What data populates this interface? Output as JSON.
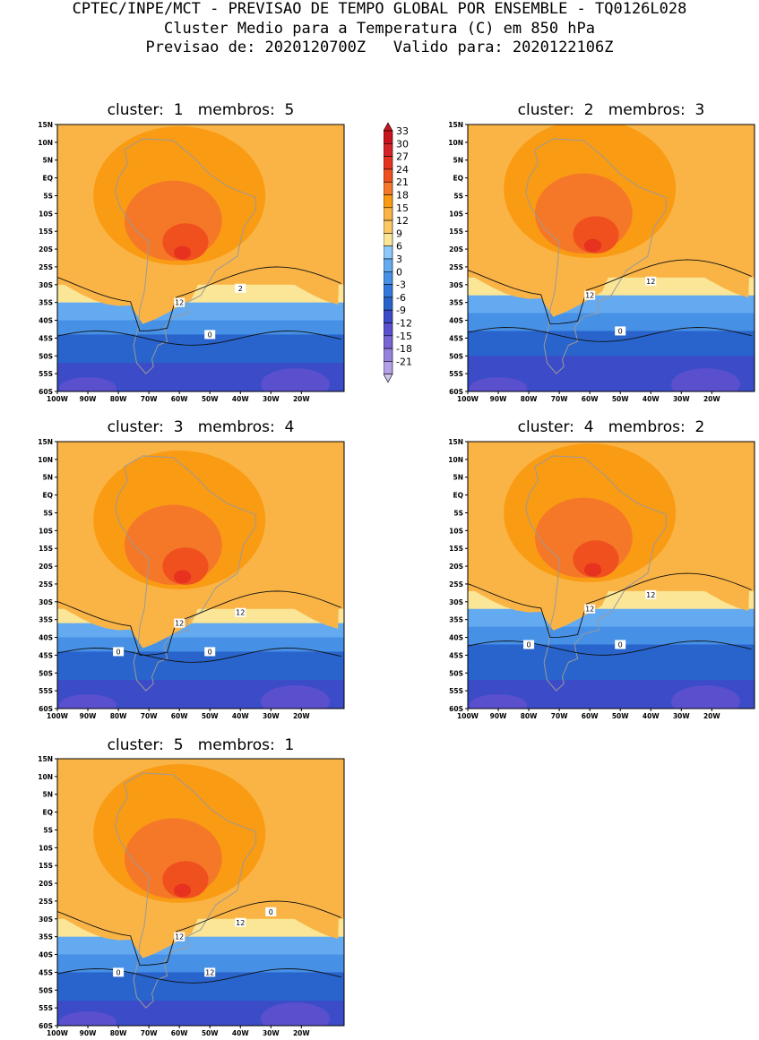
{
  "header": {
    "line1": "CPTEC/INPE/MCT - PREVISAO DE TEMPO GLOBAL POR ENSEMBLE - TQ0126L028",
    "line2": "Cluster Medio para a Temperatura (C) em 850 hPa",
    "line3": "Previsao de: 2020120700Z   Valido para: 2020122106Z"
  },
  "axes": {
    "lat_labels": [
      "15N",
      "10N",
      "5N",
      "EQ",
      "5S",
      "10S",
      "15S",
      "20S",
      "25S",
      "30S",
      "35S",
      "40S",
      "45S",
      "50S",
      "55S",
      "60S"
    ],
    "lon_labels": [
      "100W",
      "90W",
      "80W",
      "70W",
      "60W",
      "50W",
      "40W",
      "30W",
      "20W"
    ]
  },
  "colorbar": {
    "labels": [
      "33",
      "30",
      "27",
      "24",
      "21",
      "18",
      "15",
      "12",
      "9",
      "6",
      "3",
      "0",
      "-3",
      "-6",
      "-9",
      "-12",
      "-15",
      "-18",
      "-21"
    ],
    "colors": [
      "#c8141e",
      "#d52428",
      "#e6321e",
      "#f0501e",
      "#f57828",
      "#fa9b14",
      "#fab446",
      "#fac864",
      "#fae696",
      "#8cc8fa",
      "#64aaf0",
      "#4690e6",
      "#3278dc",
      "#2864cc",
      "#3c4bc8",
      "#5a50cd",
      "#7864d2",
      "#9682dc",
      "#b4a0e6",
      "#d2c3f0"
    ]
  },
  "panels": [
    {
      "title": "cluster:  1   membros:  5",
      "contour_labels": [
        "2",
        "12",
        "0"
      ]
    },
    {
      "title": "cluster:  2   membros:  3",
      "contour_labels": [
        "12",
        "12",
        "0"
      ]
    },
    {
      "title": "cluster:  3   membros:  4",
      "contour_labels": [
        "12",
        "12",
        "0",
        "0"
      ]
    },
    {
      "title": "cluster:  4   membros:  2",
      "contour_labels": [
        "12",
        "12",
        "0",
        "0"
      ]
    },
    {
      "title": "cluster:  5   membros:  1",
      "contour_labels": [
        "12",
        "12",
        "12",
        "0",
        "0"
      ]
    }
  ]
}
